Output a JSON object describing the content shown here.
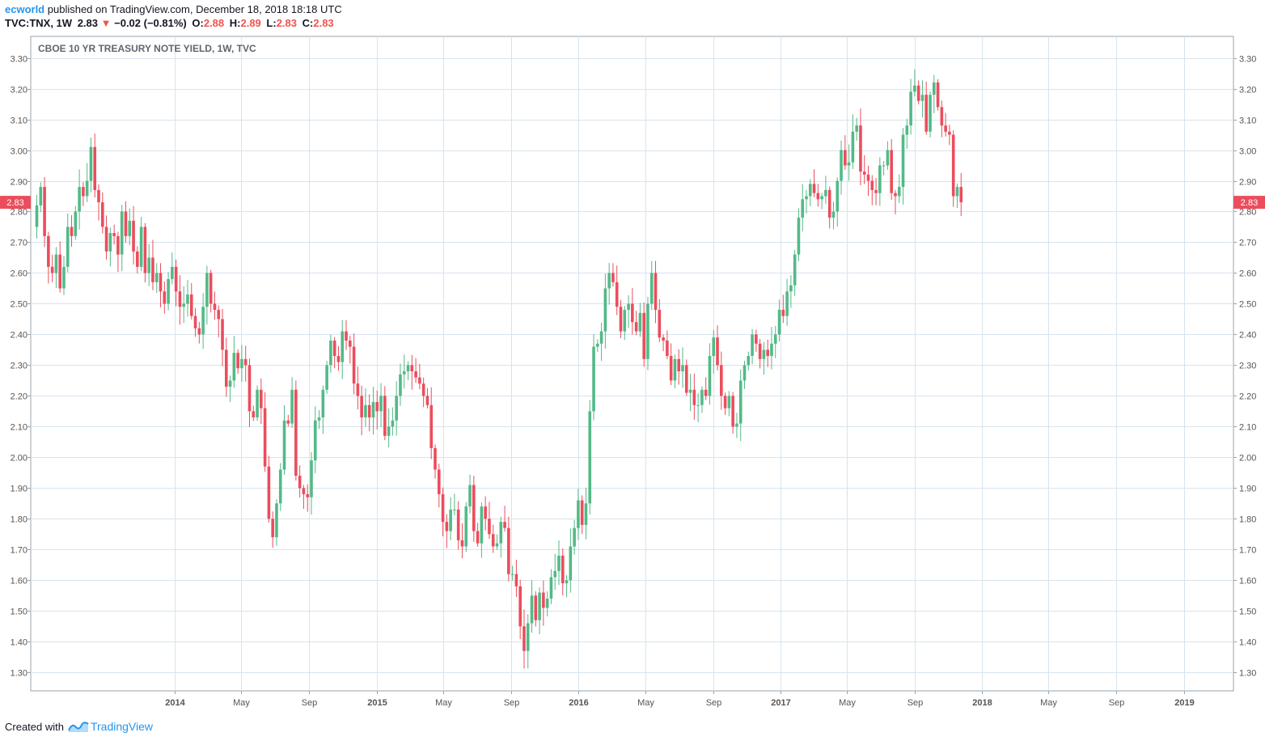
{
  "header": {
    "user": "ecworld",
    "published": "published on TradingView.com, December 18, 2018 18:18 UTC",
    "symbol": "TVC:TNX, 1W",
    "last": "2.83",
    "change": "−0.02 (−0.81%)",
    "o_label": "O:",
    "o_value": "2.88",
    "h_label": "H:",
    "h_value": "2.89",
    "l_label": "L:",
    "l_value": "2.83",
    "c_label": "C:",
    "c_value": "2.83"
  },
  "footer": {
    "created_with": "Created with",
    "brand": "TradingView"
  },
  "colors": {
    "up": "#53b987",
    "down": "#eb4d5c",
    "grid": "#d6e4ee",
    "axis": "#555555",
    "price_tag": "#eb4d5c"
  },
  "chart_data": {
    "type": "candlestick",
    "title": "CBOE 10 YR TREASURY NOTE YIELD, 1W, TVC",
    "current_price_label": "2.83",
    "ylim": [
      1.24,
      3.37
    ],
    "y_ticks": [
      1.3,
      1.4,
      1.5,
      1.6,
      1.7,
      1.8,
      1.9,
      2.0,
      2.1,
      2.2,
      2.3,
      2.4,
      2.5,
      2.6,
      2.7,
      2.8,
      2.9,
      3.0,
      3.1,
      3.2,
      3.3
    ],
    "y_tick_labels": [
      "1.30",
      "1.40",
      "1.50",
      "1.60",
      "1.70",
      "1.80",
      "1.90",
      "2.00",
      "2.10",
      "2.20",
      "2.30",
      "2.40",
      "2.50",
      "2.60",
      "2.70",
      "2.80",
      "2.90",
      "3.00",
      "3.10",
      "3.20",
      "3.30"
    ],
    "x_ticks": [
      {
        "label": "2014",
        "bold": true,
        "date": "2014-01"
      },
      {
        "label": "May",
        "bold": false,
        "date": "2014-05"
      },
      {
        "label": "Sep",
        "bold": false,
        "date": "2014-09"
      },
      {
        "label": "2015",
        "bold": true,
        "date": "2015-01"
      },
      {
        "label": "May",
        "bold": false,
        "date": "2015-05"
      },
      {
        "label": "Sep",
        "bold": false,
        "date": "2015-09"
      },
      {
        "label": "2016",
        "bold": true,
        "date": "2016-01"
      },
      {
        "label": "May",
        "bold": false,
        "date": "2016-05"
      },
      {
        "label": "Sep",
        "bold": false,
        "date": "2016-09"
      },
      {
        "label": "2017",
        "bold": true,
        "date": "2017-01"
      },
      {
        "label": "May",
        "bold": false,
        "date": "2017-05"
      },
      {
        "label": "Sep",
        "bold": false,
        "date": "2017-09"
      },
      {
        "label": "2018",
        "bold": true,
        "date": "2018-01"
      },
      {
        "label": "May",
        "bold": false,
        "date": "2018-05"
      },
      {
        "label": "Sep",
        "bold": false,
        "date": "2018-09"
      },
      {
        "label": "2019",
        "bold": true,
        "date": "2019-01"
      }
    ],
    "series": [
      {
        "name": "TVC:TNX",
        "closes": [
          2.75,
          2.82,
          2.88,
          2.72,
          2.62,
          2.6,
          2.66,
          2.55,
          2.62,
          2.75,
          2.72,
          2.8,
          2.88,
          2.85,
          2.9,
          3.01,
          2.87,
          2.83,
          2.75,
          2.67,
          2.73,
          2.72,
          2.66,
          2.8,
          2.72,
          2.77,
          2.67,
          2.62,
          2.75,
          2.6,
          2.65,
          2.57,
          2.6,
          2.54,
          2.5,
          2.58,
          2.62,
          2.54,
          2.49,
          2.5,
          2.53,
          2.46,
          2.42,
          2.4,
          2.49,
          2.6,
          2.5,
          2.48,
          2.45,
          2.35,
          2.23,
          2.25,
          2.34,
          2.29,
          2.32,
          2.3,
          2.15,
          2.13,
          2.22,
          2.16,
          1.97,
          1.8,
          1.74,
          1.85,
          1.96,
          2.12,
          2.11,
          2.22,
          1.94,
          1.9,
          1.88,
          1.87,
          1.99,
          2.12,
          2.13,
          2.22,
          2.3,
          2.38,
          2.33,
          2.31,
          2.41,
          2.38,
          2.36,
          2.24,
          2.2,
          2.13,
          2.17,
          2.13,
          2.18,
          2.15,
          2.2,
          2.07,
          2.1,
          2.12,
          2.2,
          2.27,
          2.28,
          2.3,
          2.28,
          2.26,
          2.24,
          2.2,
          2.17,
          2.03,
          1.96,
          1.88,
          1.79,
          1.76,
          1.83,
          1.83,
          1.73,
          1.71,
          1.84,
          1.91,
          1.76,
          1.72,
          1.84,
          1.8,
          1.75,
          1.71,
          1.72,
          1.79,
          1.77,
          1.62,
          1.62,
          1.58,
          1.45,
          1.37,
          1.46,
          1.55,
          1.47,
          1.56,
          1.51,
          1.54,
          1.61,
          1.63,
          1.68,
          1.59,
          1.6,
          1.71,
          1.77,
          1.86,
          1.78,
          1.85,
          2.15,
          2.36,
          2.37,
          2.41,
          2.55,
          2.6,
          2.57,
          2.49,
          2.41,
          2.48,
          2.5,
          2.44,
          2.41,
          2.47,
          2.32,
          2.5,
          2.6,
          2.48,
          2.39,
          2.38,
          2.33,
          2.25,
          2.32,
          2.28,
          2.3,
          2.21,
          2.22,
          2.17,
          2.17,
          2.22,
          2.2,
          2.33,
          2.39,
          2.3,
          2.2,
          2.16,
          2.2,
          2.1,
          2.11,
          2.25,
          2.3,
          2.33,
          2.4,
          2.37,
          2.32,
          2.35,
          2.33,
          2.37,
          2.4,
          2.48,
          2.46,
          2.54,
          2.56,
          2.66,
          2.78,
          2.84,
          2.85,
          2.89,
          2.86,
          2.84,
          2.85,
          2.87,
          2.78,
          2.8,
          2.9,
          3.0,
          2.95,
          2.96,
          3.06,
          3.08,
          2.93,
          2.92,
          2.9,
          2.87,
          2.86,
          2.95,
          2.95,
          3.0,
          2.86,
          2.85,
          2.88,
          3.05,
          3.08,
          3.19,
          3.21,
          3.16,
          3.18,
          3.06,
          3.18,
          3.22,
          3.14,
          3.08,
          3.06,
          3.05,
          2.85,
          2.88,
          2.83
        ]
      }
    ]
  }
}
